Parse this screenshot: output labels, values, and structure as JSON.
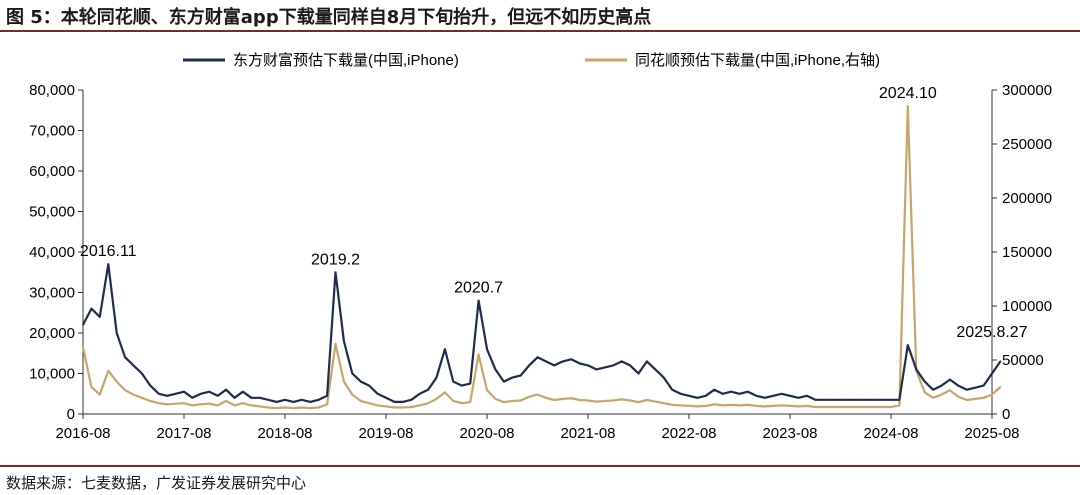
{
  "title": "图 5：本轮同花顺、东方财富app下载量同样自8月下旬抬升，但远不如历史高点",
  "source": "数据来源：七麦数据，广发证券发展研究中心",
  "colors": {
    "series1": "#1f2d4d",
    "series2": "#c9a46b",
    "rule": "#7a2828"
  },
  "chart_data": {
    "type": "line",
    "x_axis": {
      "ticks": [
        "2016-08",
        "2017-08",
        "2018-08",
        "2019-08",
        "2020-08",
        "2021-08",
        "2022-08",
        "2023-08",
        "2024-08",
        "2025-08"
      ]
    },
    "y_left": {
      "range": [
        0,
        80000
      ],
      "ticks": [
        "0",
        "10,000",
        "20,000",
        "30,000",
        "40,000",
        "50,000",
        "60,000",
        "70,000",
        "80,000"
      ]
    },
    "y_right": {
      "range": [
        0,
        300000
      ],
      "ticks": [
        "0",
        "50000",
        "100000",
        "150000",
        "200000",
        "250000",
        "300000"
      ]
    },
    "legend_position": "top",
    "series": [
      {
        "name": "东方财富预估下载量(中国,iPhone)",
        "axis": "left",
        "color": "#1f2d4d",
        "points": [
          [
            "2016-08",
            22000
          ],
          [
            "2016-09",
            26000
          ],
          [
            "2016-10",
            24000
          ],
          [
            "2016-11",
            37000
          ],
          [
            "2016-12",
            20000
          ],
          [
            "2017-01",
            14000
          ],
          [
            "2017-02",
            12000
          ],
          [
            "2017-03",
            10000
          ],
          [
            "2017-04",
            7000
          ],
          [
            "2017-05",
            5000
          ],
          [
            "2017-06",
            4500
          ],
          [
            "2017-07",
            5000
          ],
          [
            "2017-08",
            5500
          ],
          [
            "2017-09",
            4000
          ],
          [
            "2017-10",
            5000
          ],
          [
            "2017-11",
            5500
          ],
          [
            "2017-12",
            4500
          ],
          [
            "2018-01",
            6000
          ],
          [
            "2018-02",
            4000
          ],
          [
            "2018-03",
            5500
          ],
          [
            "2018-04",
            4000
          ],
          [
            "2018-05",
            4000
          ],
          [
            "2018-06",
            3500
          ],
          [
            "2018-07",
            3000
          ],
          [
            "2018-08",
            3500
          ],
          [
            "2018-09",
            3000
          ],
          [
            "2018-10",
            3500
          ],
          [
            "2018-11",
            3000
          ],
          [
            "2018-12",
            3500
          ],
          [
            "2019-01",
            4500
          ],
          [
            "2019-02",
            35000
          ],
          [
            "2019-03",
            18000
          ],
          [
            "2019-04",
            10000
          ],
          [
            "2019-05",
            8000
          ],
          [
            "2019-06",
            7000
          ],
          [
            "2019-07",
            5000
          ],
          [
            "2019-08",
            4000
          ],
          [
            "2019-09",
            3000
          ],
          [
            "2019-10",
            3000
          ],
          [
            "2019-11",
            3500
          ],
          [
            "2019-12",
            5000
          ],
          [
            "2020-01",
            6000
          ],
          [
            "2020-02",
            9000
          ],
          [
            "2020-03",
            16000
          ],
          [
            "2020-04",
            8000
          ],
          [
            "2020-05",
            7000
          ],
          [
            "2020-06",
            7500
          ],
          [
            "2020-07",
            28000
          ],
          [
            "2020-08",
            16000
          ],
          [
            "2020-09",
            11000
          ],
          [
            "2020-10",
            8000
          ],
          [
            "2020-11",
            9000
          ],
          [
            "2020-12",
            9500
          ],
          [
            "2021-01",
            12000
          ],
          [
            "2021-02",
            14000
          ],
          [
            "2021-03",
            13000
          ],
          [
            "2021-04",
            12000
          ],
          [
            "2021-05",
            13000
          ],
          [
            "2021-06",
            13500
          ],
          [
            "2021-07",
            12500
          ],
          [
            "2021-08",
            12000
          ],
          [
            "2021-09",
            11000
          ],
          [
            "2021-10",
            11500
          ],
          [
            "2021-11",
            12000
          ],
          [
            "2021-12",
            13000
          ],
          [
            "2022-01",
            12000
          ],
          [
            "2022-02",
            10000
          ],
          [
            "2022-03",
            13000
          ],
          [
            "2022-04",
            11000
          ],
          [
            "2022-05",
            9000
          ],
          [
            "2022-06",
            6000
          ],
          [
            "2022-07",
            5000
          ],
          [
            "2022-08",
            4500
          ],
          [
            "2022-09",
            4000
          ],
          [
            "2022-10",
            4500
          ],
          [
            "2022-11",
            6000
          ],
          [
            "2022-12",
            5000
          ],
          [
            "2023-01",
            5500
          ],
          [
            "2023-02",
            5000
          ],
          [
            "2023-03",
            5500
          ],
          [
            "2023-04",
            4500
          ],
          [
            "2023-05",
            4000
          ],
          [
            "2023-06",
            4500
          ],
          [
            "2023-07",
            5000
          ],
          [
            "2023-08",
            4500
          ],
          [
            "2023-09",
            4000
          ],
          [
            "2023-10",
            4500
          ],
          [
            "2023-11",
            3500
          ],
          [
            "2023-12",
            3500
          ],
          [
            "2024-01",
            3500
          ],
          [
            "2024-02",
            3500
          ],
          [
            "2024-03",
            3500
          ],
          [
            "2024-04",
            3500
          ],
          [
            "2024-05",
            3500
          ],
          [
            "2024-06",
            3500
          ],
          [
            "2024-07",
            3500
          ],
          [
            "2024-08",
            3500
          ],
          [
            "2024-09",
            3500
          ],
          [
            "2024-10",
            17000
          ],
          [
            "2024-11",
            11000
          ],
          [
            "2024-12",
            8000
          ],
          [
            "2025-01",
            6000
          ],
          [
            "2025-02",
            7000
          ],
          [
            "2025-03",
            8500
          ],
          [
            "2025-04",
            7000
          ],
          [
            "2025-05",
            6000
          ],
          [
            "2025-06",
            6500
          ],
          [
            "2025-07",
            7000
          ],
          [
            "2025-08",
            10000
          ],
          [
            "2025-09",
            13000
          ]
        ]
      },
      {
        "name": "同花顺预估下载量(中国,iPhone,右轴)",
        "axis": "right",
        "color": "#c9a46b",
        "points": [
          [
            "2016-08",
            62000
          ],
          [
            "2016-09",
            25000
          ],
          [
            "2016-10",
            18000
          ],
          [
            "2016-11",
            40000
          ],
          [
            "2016-12",
            30000
          ],
          [
            "2017-01",
            22000
          ],
          [
            "2017-02",
            18000
          ],
          [
            "2017-03",
            15000
          ],
          [
            "2017-04",
            12000
          ],
          [
            "2017-05",
            10000
          ],
          [
            "2017-06",
            9000
          ],
          [
            "2017-07",
            9500
          ],
          [
            "2017-08",
            10000
          ],
          [
            "2017-09",
            8000
          ],
          [
            "2017-10",
            9000
          ],
          [
            "2017-11",
            9500
          ],
          [
            "2017-12",
            8000
          ],
          [
            "2018-01",
            12000
          ],
          [
            "2018-02",
            8000
          ],
          [
            "2018-03",
            10000
          ],
          [
            "2018-04",
            8000
          ],
          [
            "2018-05",
            7000
          ],
          [
            "2018-06",
            6000
          ],
          [
            "2018-07",
            5500
          ],
          [
            "2018-08",
            6000
          ],
          [
            "2018-09",
            5500
          ],
          [
            "2018-10",
            6000
          ],
          [
            "2018-11",
            5500
          ],
          [
            "2018-12",
            6000
          ],
          [
            "2019-01",
            9000
          ],
          [
            "2019-02",
            65000
          ],
          [
            "2019-03",
            30000
          ],
          [
            "2019-04",
            18000
          ],
          [
            "2019-05",
            12000
          ],
          [
            "2019-06",
            10000
          ],
          [
            "2019-07",
            8000
          ],
          [
            "2019-08",
            7000
          ],
          [
            "2019-09",
            6000
          ],
          [
            "2019-10",
            6000
          ],
          [
            "2019-11",
            6500
          ],
          [
            "2019-12",
            8000
          ],
          [
            "2020-01",
            10000
          ],
          [
            "2020-02",
            14000
          ],
          [
            "2020-03",
            20000
          ],
          [
            "2020-04",
            12000
          ],
          [
            "2020-05",
            10000
          ],
          [
            "2020-06",
            11000
          ],
          [
            "2020-07",
            55000
          ],
          [
            "2020-08",
            22000
          ],
          [
            "2020-09",
            14000
          ],
          [
            "2020-10",
            11000
          ],
          [
            "2020-11",
            12000
          ],
          [
            "2020-12",
            12500
          ],
          [
            "2021-01",
            16000
          ],
          [
            "2021-02",
            18000
          ],
          [
            "2021-03",
            15000
          ],
          [
            "2021-04",
            13000
          ],
          [
            "2021-05",
            14000
          ],
          [
            "2021-06",
            14500
          ],
          [
            "2021-07",
            13000
          ],
          [
            "2021-08",
            12500
          ],
          [
            "2021-09",
            11500
          ],
          [
            "2021-10",
            12000
          ],
          [
            "2021-11",
            12500
          ],
          [
            "2021-12",
            13500
          ],
          [
            "2022-01",
            12500
          ],
          [
            "2022-02",
            11000
          ],
          [
            "2022-03",
            13000
          ],
          [
            "2022-04",
            11500
          ],
          [
            "2022-05",
            10000
          ],
          [
            "2022-06",
            8500
          ],
          [
            "2022-07",
            8000
          ],
          [
            "2022-08",
            7500
          ],
          [
            "2022-09",
            7000
          ],
          [
            "2022-10",
            7500
          ],
          [
            "2022-11",
            9000
          ],
          [
            "2022-12",
            8000
          ],
          [
            "2023-01",
            8500
          ],
          [
            "2023-02",
            8000
          ],
          [
            "2023-03",
            8500
          ],
          [
            "2023-04",
            7500
          ],
          [
            "2023-05",
            7000
          ],
          [
            "2023-06",
            7500
          ],
          [
            "2023-07",
            8000
          ],
          [
            "2023-08",
            7500
          ],
          [
            "2023-09",
            7000
          ],
          [
            "2023-10",
            7500
          ],
          [
            "2023-11",
            6500
          ],
          [
            "2023-12",
            6500
          ],
          [
            "2024-01",
            6500
          ],
          [
            "2024-02",
            6500
          ],
          [
            "2024-03",
            6500
          ],
          [
            "2024-04",
            6500
          ],
          [
            "2024-05",
            6500
          ],
          [
            "2024-06",
            6500
          ],
          [
            "2024-07",
            6500
          ],
          [
            "2024-08",
            6500
          ],
          [
            "2024-09",
            8000
          ],
          [
            "2024-10",
            285000
          ],
          [
            "2024-11",
            40000
          ],
          [
            "2024-12",
            20000
          ],
          [
            "2025-01",
            15000
          ],
          [
            "2025-02",
            18000
          ],
          [
            "2025-03",
            22000
          ],
          [
            "2025-04",
            16000
          ],
          [
            "2025-05",
            13000
          ],
          [
            "2025-06",
            14000
          ],
          [
            "2025-07",
            15000
          ],
          [
            "2025-08",
            18000
          ],
          [
            "2025-09",
            25000
          ]
        ]
      }
    ],
    "annotations": [
      {
        "text": "2016.11",
        "x": "2016-11",
        "y": 37000
      },
      {
        "text": "2019.2",
        "x": "2019-02",
        "y": 35000
      },
      {
        "text": "2020.7",
        "x": "2020-07",
        "y": 28000
      },
      {
        "text": "2024.10",
        "x": "2024-10",
        "y": 76000
      },
      {
        "text": "2025.8.27",
        "x": "2025-08",
        "y": 17000
      }
    ]
  }
}
